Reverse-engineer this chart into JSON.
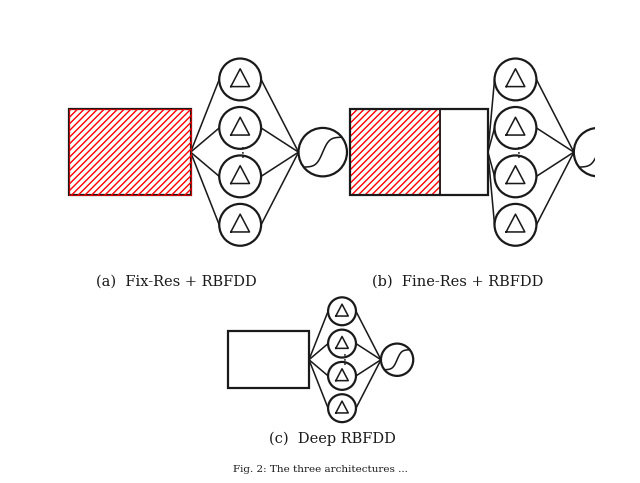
{
  "fig_width": 6.4,
  "fig_height": 4.83,
  "dpi": 100,
  "bg_color": "#ffffff",
  "line_color": "#1a1a1a",
  "hatch_color": "#ff0000",
  "caption_a": "(a)  Fix-Res + RBFDD",
  "caption_b": "(b)  Fine-Res + RBFDD",
  "caption_c": "(c)  Deep RBFDD",
  "lw": 1.6,
  "hatch_lw": 0.5
}
